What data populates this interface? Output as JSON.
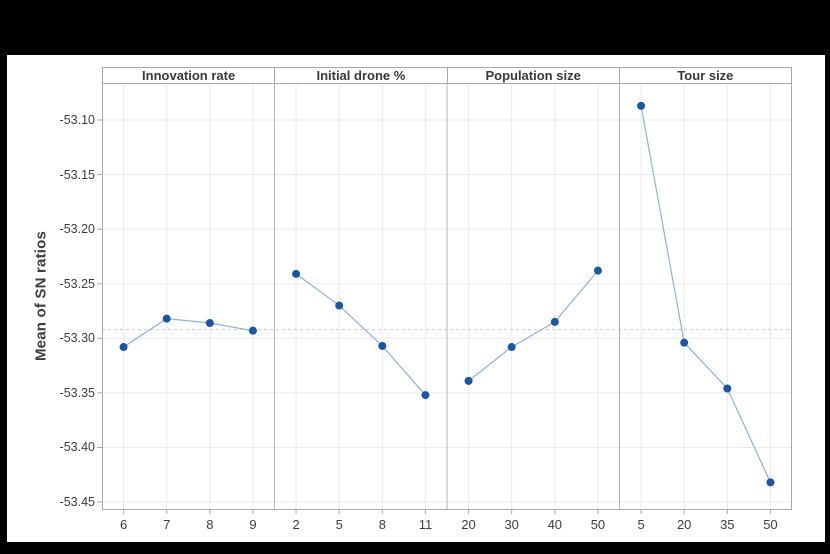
{
  "chart_data": {
    "type": "line",
    "title": "",
    "ylabel": "Mean of SN ratios",
    "ylim": [
      -53.4573,
      -53.0661
    ],
    "yticks": [
      -53.1,
      -53.15,
      -53.2,
      -53.25,
      -53.3,
      -53.35,
      -53.4,
      -53.45
    ],
    "reference_line": -53.292,
    "grid": true,
    "legend": false,
    "panels": [
      {
        "label": "Innovation rate",
        "categories": [
          "6",
          "7",
          "8",
          "9"
        ],
        "values": [
          -53.308,
          -53.282,
          -53.286,
          -53.293
        ]
      },
      {
        "label": "Initial drone %",
        "categories": [
          "2",
          "5",
          "8",
          "11"
        ],
        "values": [
          -53.241,
          -53.27,
          -53.307,
          -53.352
        ]
      },
      {
        "label": "Population size",
        "categories": [
          "20",
          "30",
          "40",
          "50"
        ],
        "values": [
          -53.339,
          -53.308,
          -53.285,
          -53.238
        ]
      },
      {
        "label": "Tour size",
        "categories": [
          "5",
          "20",
          "35",
          "50"
        ],
        "values": [
          -53.087,
          -53.304,
          -53.346,
          -53.432
        ]
      }
    ]
  },
  "colors": {
    "page_background": "#000000",
    "chart_background": "#ffffff",
    "marker": "#1a56a6",
    "series_line": "#8fb1dd",
    "grid": "#ebebeb",
    "frame": "#a9a9a9",
    "divider": "#b5b5b5",
    "reference": "#c9c9c9",
    "text": "#3d3d3d"
  }
}
